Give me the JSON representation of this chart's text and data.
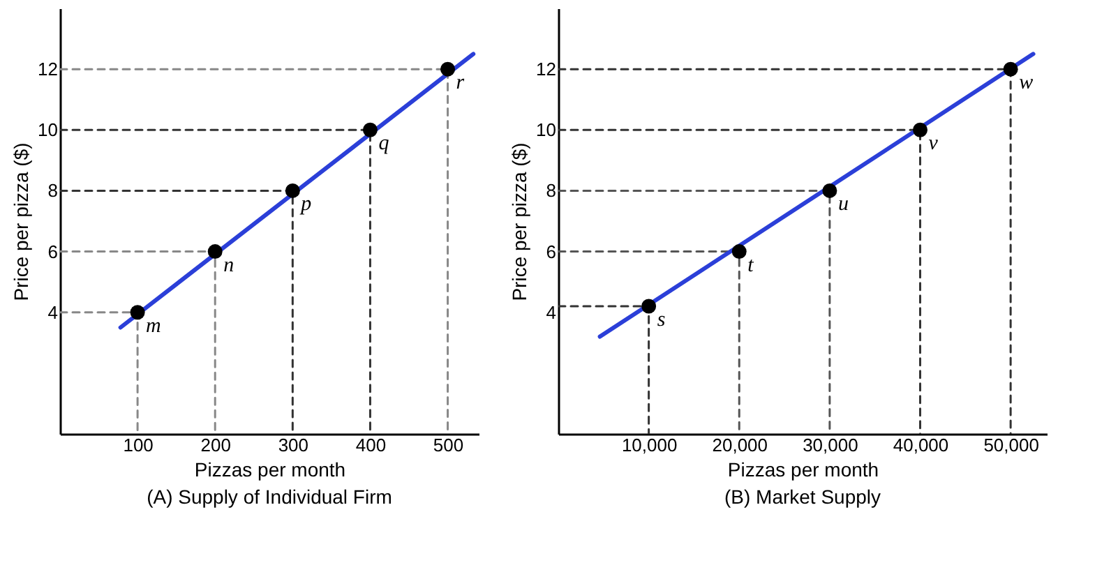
{
  "chart_data": [
    {
      "type": "scatter",
      "title": "(A) Supply of Individual Firm",
      "xlabel": "Pizzas per month",
      "ylabel": "Price per pizza ($)",
      "xlim": [
        0,
        540
      ],
      "ylim": [
        0,
        14
      ],
      "xticks": [
        100,
        200,
        300,
        400,
        500
      ],
      "yticks": [
        4,
        6,
        8,
        10,
        12
      ],
      "grid": false,
      "x": [
        100,
        200,
        300,
        400,
        500
      ],
      "series": [
        {
          "type": "line",
          "line_style": "dashed",
          "color": "#888888",
          "x": [
            0,
            100,
            100
          ],
          "values": [
            4,
            4,
            0
          ]
        },
        {
          "type": "line",
          "line_style": "dashed",
          "color": "#888888",
          "x": [
            0,
            200,
            200
          ],
          "values": [
            6,
            6,
            0
          ]
        },
        {
          "type": "line",
          "line_style": "dashed",
          "color": "#333333",
          "x": [
            0,
            300,
            300
          ],
          "values": [
            8,
            8,
            0
          ]
        },
        {
          "type": "line",
          "line_style": "dashed",
          "color": "#333333",
          "x": [
            0,
            400,
            400
          ],
          "values": [
            10,
            10,
            0
          ]
        },
        {
          "type": "line",
          "line_style": "dashed",
          "color": "#888888",
          "x": [
            0,
            500,
            500
          ],
          "values": [
            12,
            12,
            0
          ]
        },
        {
          "type": "line",
          "line_style": "solid",
          "color": "#2b3fd8",
          "x": [
            78,
            533
          ],
          "values": [
            3.5,
            12.5
          ]
        },
        {
          "type": "scatter",
          "color": "#000000",
          "marker": "circle",
          "values": [
            4,
            6,
            8,
            10,
            12
          ]
        }
      ],
      "annotations": [
        {
          "text": "m",
          "x": 100,
          "y": 4
        },
        {
          "text": "n",
          "x": 200,
          "y": 6
        },
        {
          "text": "p",
          "x": 300,
          "y": 8
        },
        {
          "text": "q",
          "x": 400,
          "y": 10
        },
        {
          "text": "r",
          "x": 500,
          "y": 12
        }
      ]
    },
    {
      "type": "scatter",
      "title": "(B) Market Supply",
      "xlabel": "Pizzas per month",
      "ylabel": "Price per pizza ($)",
      "xlim": [
        0,
        54000
      ],
      "ylim": [
        0,
        14
      ],
      "xticks": [
        {
          "value": 10000,
          "label": "10,000"
        },
        {
          "value": 20000,
          "label": "20,000"
        },
        {
          "value": 30000,
          "label": "30,000"
        },
        {
          "value": 40000,
          "label": "40,000"
        },
        {
          "value": 50000,
          "label": "50,000"
        }
      ],
      "yticks": [
        4,
        6,
        8,
        10,
        12
      ],
      "grid": false,
      "x": [
        10000,
        20000,
        30000,
        40000,
        50000
      ],
      "series": [
        {
          "type": "line",
          "line_style": "dashed",
          "color": "#333333",
          "x": [
            0,
            10000,
            10000
          ],
          "values": [
            4.2,
            4.2,
            0
          ]
        },
        {
          "type": "line",
          "line_style": "dashed",
          "color": "#555555",
          "x": [
            0,
            20000,
            20000
          ],
          "values": [
            6,
            6,
            0
          ]
        },
        {
          "type": "line",
          "line_style": "dashed",
          "color": "#555555",
          "x": [
            0,
            30000,
            30000
          ],
          "values": [
            8,
            8,
            0
          ]
        },
        {
          "type": "line",
          "line_style": "dashed",
          "color": "#333333",
          "x": [
            0,
            40000,
            40000
          ],
          "values": [
            10,
            10,
            0
          ]
        },
        {
          "type": "line",
          "line_style": "dashed",
          "color": "#333333",
          "x": [
            0,
            50000,
            50000
          ],
          "values": [
            12,
            12,
            0
          ]
        },
        {
          "type": "line",
          "line_style": "solid",
          "color": "#2b3fd8",
          "x": [
            4600,
            52500
          ],
          "values": [
            3.2,
            12.5
          ]
        },
        {
          "type": "scatter",
          "color": "#000000",
          "marker": "circle",
          "values": [
            4.2,
            6,
            8,
            10,
            12
          ]
        }
      ],
      "annotations": [
        {
          "text": "s",
          "x": 10000,
          "y": 4.2
        },
        {
          "text": "t",
          "x": 20000,
          "y": 6
        },
        {
          "text": "u",
          "x": 30000,
          "y": 8
        },
        {
          "text": "v",
          "x": 40000,
          "y": 10
        },
        {
          "text": "w",
          "x": 50000,
          "y": 12
        }
      ]
    }
  ]
}
